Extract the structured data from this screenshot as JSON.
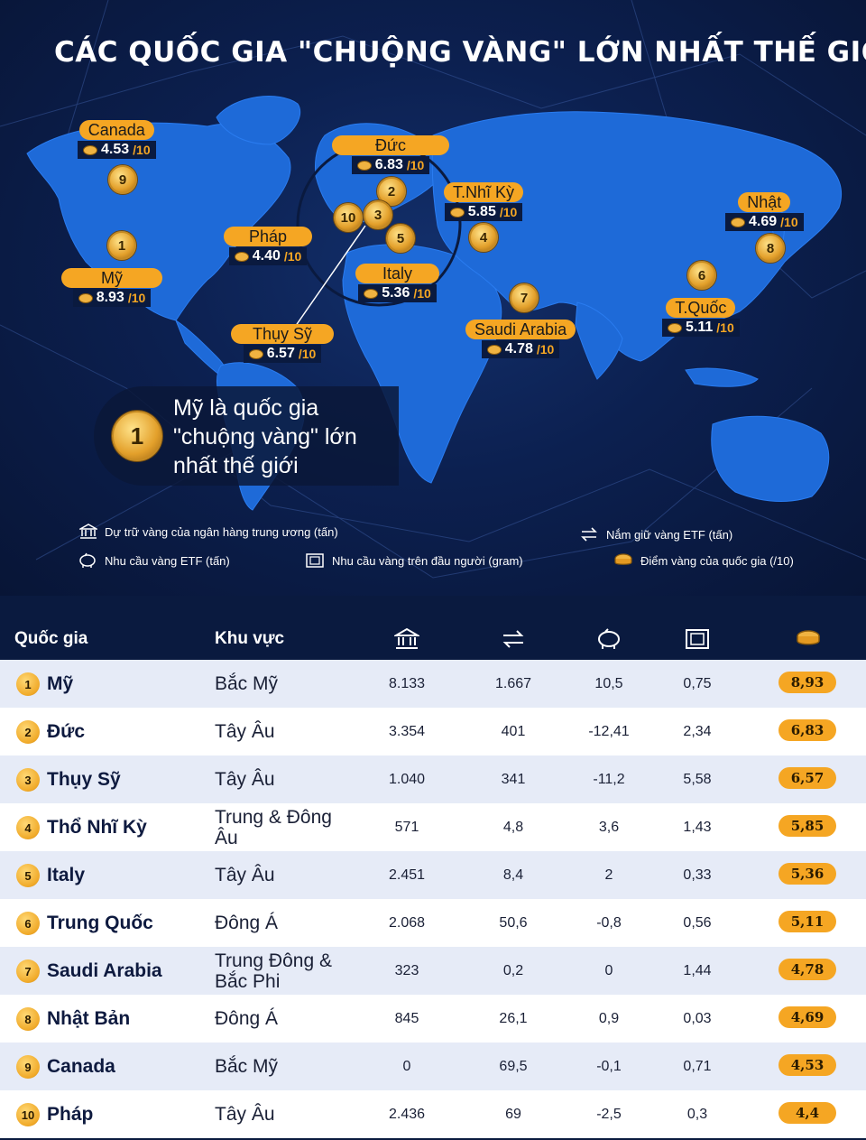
{
  "title": "CÁC QUỐC GIA \"CHUỘNG VÀNG\" LỚN NHẤT THẾ GIỚI",
  "colors": {
    "background": "#0a1a3f",
    "map_land": "#1e6ad8",
    "accent_gold": "#f5a623",
    "row_light": "#e6ebf7",
    "row_white": "#ffffff"
  },
  "map_labels": [
    {
      "name": "Canada",
      "score": "4.53",
      "denom": "/10"
    },
    {
      "name": "Đức",
      "score": "6.83",
      "denom": "/10"
    },
    {
      "name": "T.Nhĩ Kỳ",
      "score": "5.85",
      "denom": "/10"
    },
    {
      "name": "Nhật",
      "score": "4.69",
      "denom": "/10"
    },
    {
      "name": "Pháp",
      "score": "4.40",
      "denom": "/10"
    },
    {
      "name": "Mỹ",
      "score": "8.93",
      "denom": "/10"
    },
    {
      "name": "Italy",
      "score": "5.36",
      "denom": "/10"
    },
    {
      "name": "T.Quốc",
      "score": "5.11",
      "denom": "/10"
    },
    {
      "name": "Saudi Arabia",
      "score": "4.78",
      "denom": "/10"
    },
    {
      "name": "Thụy Sỹ",
      "score": "6.57",
      "denom": "/10"
    }
  ],
  "map_medals": [
    "9",
    "1",
    "2",
    "10",
    "3",
    "5",
    "4",
    "7",
    "6",
    "8"
  ],
  "callout": {
    "rank": "1",
    "text": "Mỹ là quốc gia \"chuộng vàng\" lớn nhất thế giới"
  },
  "legend": {
    "reserves": "Dự trữ vàng của ngân hàng trung ương (tấn)",
    "etf_holding": "Nắm giữ vàng ETF (tấn)",
    "etf_demand": "Nhu cầu vàng ETF (tấn)",
    "per_capita": "Nhu cầu vàng trên đầu người (gram)",
    "score": "Điểm vàng của quốc gia (/10)"
  },
  "table": {
    "headers": {
      "country": "Quốc gia",
      "region": "Khu vực"
    },
    "header_icons": [
      "bank-icon",
      "exchange-icon",
      "piggy-bank-icon",
      "gold-bar-icon",
      "coin-stack-icon"
    ],
    "rows": [
      {
        "rank": "1",
        "country": "Mỹ",
        "region": "Bắc Mỹ",
        "reserves": "8.133",
        "etf_holding": "1.667",
        "etf_demand": "10,5",
        "per_capita": "0,75",
        "score": "8,93"
      },
      {
        "rank": "2",
        "country": "Đức",
        "region": "Tây Âu",
        "reserves": "3.354",
        "etf_holding": "401",
        "etf_demand": "-12,41",
        "per_capita": "2,34",
        "score": "6,83"
      },
      {
        "rank": "3",
        "country": "Thụy Sỹ",
        "region": "Tây Âu",
        "reserves": "1.040",
        "etf_holding": "341",
        "etf_demand": "-11,2",
        "per_capita": "5,58",
        "score": "6,57"
      },
      {
        "rank": "4",
        "country": "Thổ Nhĩ Kỳ",
        "region": "Trung & Đông Âu",
        "reserves": "571",
        "etf_holding": "4,8",
        "etf_demand": "3,6",
        "per_capita": "1,43",
        "score": "5,85"
      },
      {
        "rank": "5",
        "country": "Italy",
        "region": "Tây Âu",
        "reserves": "2.451",
        "etf_holding": "8,4",
        "etf_demand": "2",
        "per_capita": "0,33",
        "score": "5,36"
      },
      {
        "rank": "6",
        "country": "Trung Quốc",
        "region": "Đông Á",
        "reserves": "2.068",
        "etf_holding": "50,6",
        "etf_demand": "-0,8",
        "per_capita": "0,56",
        "score": "5,11"
      },
      {
        "rank": "7",
        "country": "Saudi Arabia",
        "region": "Trung Đông & Bắc Phi",
        "reserves": "323",
        "etf_holding": "0,2",
        "etf_demand": "0",
        "per_capita": "1,44",
        "score": "4,78"
      },
      {
        "rank": "8",
        "country": "Nhật Bản",
        "region": "Đông Á",
        "reserves": "845",
        "etf_holding": "26,1",
        "etf_demand": "0,9",
        "per_capita": "0,03",
        "score": "4,69"
      },
      {
        "rank": "9",
        "country": "Canada",
        "region": "Bắc Mỹ",
        "reserves": "0",
        "etf_holding": "69,5",
        "etf_demand": "-0,1",
        "per_capita": "0,71",
        "score": "4,53"
      },
      {
        "rank": "10",
        "country": "Pháp",
        "region": "Tây Âu",
        "reserves": "2.436",
        "etf_holding": "69",
        "etf_demand": "-2,5",
        "per_capita": "0,3",
        "score": "4,4"
      }
    ]
  }
}
